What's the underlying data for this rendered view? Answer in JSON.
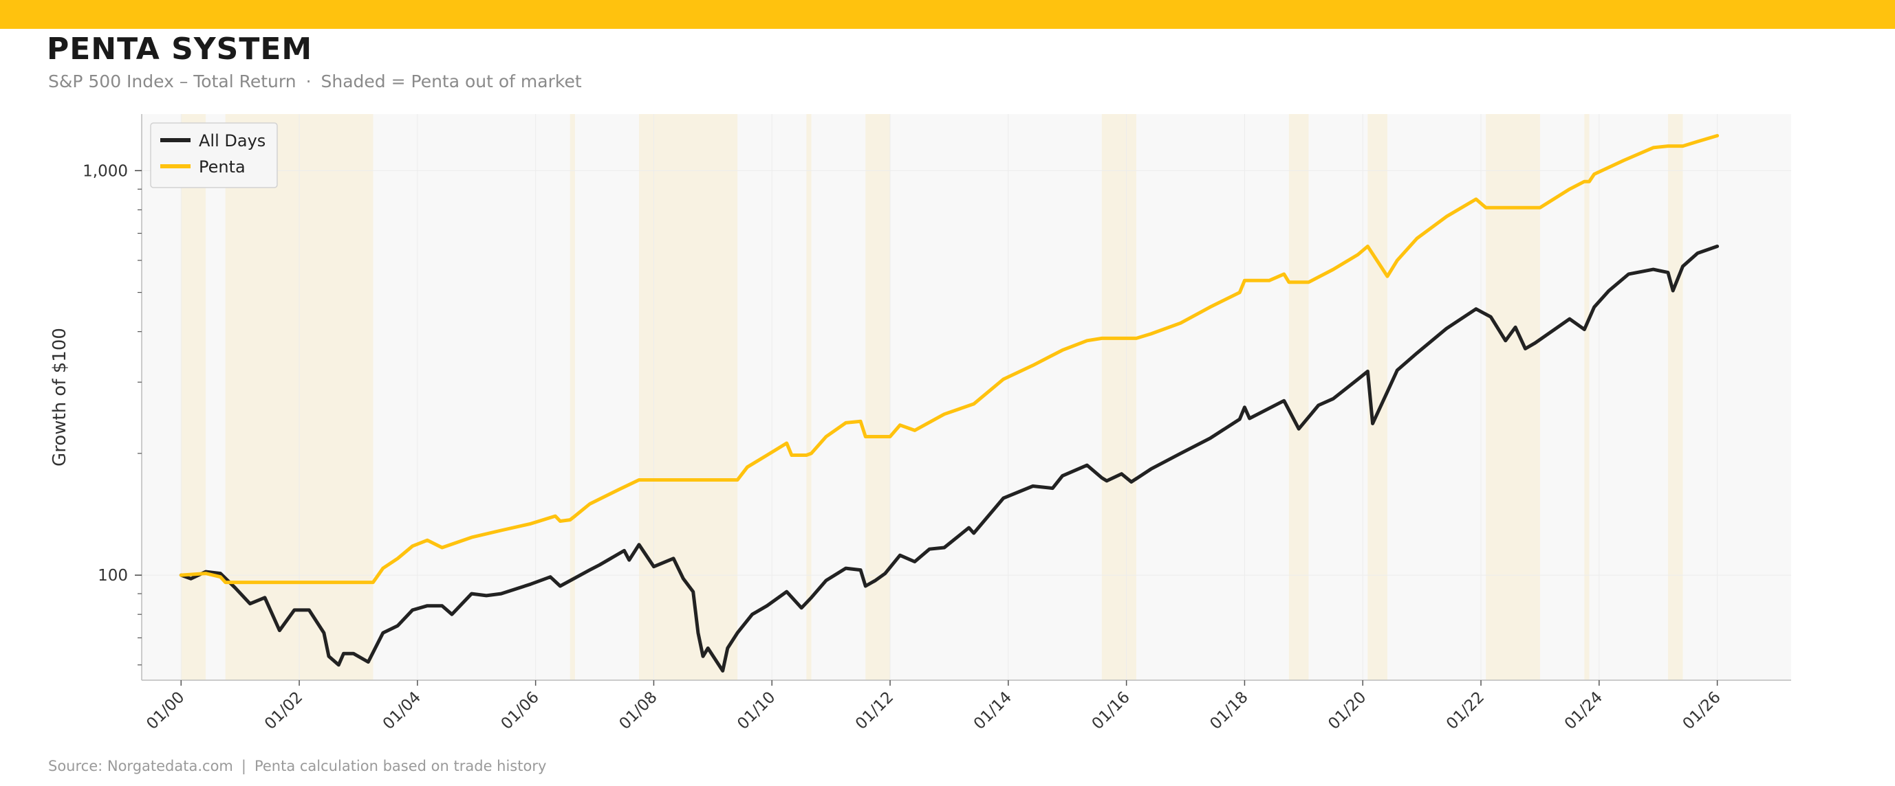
{
  "header": {
    "title": "PENTA SYSTEM",
    "subtitle_main": "S&P 500 Index – Total Return",
    "subtitle_sep": "·",
    "subtitle_note": "Shaded = Penta out of market"
  },
  "footer": {
    "source": "Source: Norgatedata.com",
    "sep": "|",
    "note": "Penta calculation based on trade history"
  },
  "colors": {
    "accent": "#FFC20E",
    "all_days": "#222222",
    "penta": "#FFC20E",
    "shade": "#F8F2E2",
    "plot_bg": "#F8F8F8",
    "grid": "#ECECEC"
  },
  "chart_data": {
    "type": "line",
    "ylabel": "Growth of $100",
    "xlabel": "",
    "y_scale": "log",
    "ylim": [
      55,
      1380
    ],
    "xlim": [
      "1999-05",
      "2027-04"
    ],
    "y_ticks": [
      {
        "value": 100,
        "label": "100"
      },
      {
        "value": 1000,
        "label": "1,000"
      }
    ],
    "x_ticks": [
      {
        "date": "2000-01",
        "label": "01/00"
      },
      {
        "date": "2002-01",
        "label": "01/02"
      },
      {
        "date": "2004-01",
        "label": "01/04"
      },
      {
        "date": "2006-01",
        "label": "01/06"
      },
      {
        "date": "2008-01",
        "label": "01/08"
      },
      {
        "date": "2010-01",
        "label": "01/10"
      },
      {
        "date": "2012-01",
        "label": "01/12"
      },
      {
        "date": "2014-01",
        "label": "01/14"
      },
      {
        "date": "2016-01",
        "label": "01/16"
      },
      {
        "date": "2018-01",
        "label": "01/18"
      },
      {
        "date": "2020-01",
        "label": "01/20"
      },
      {
        "date": "2022-01",
        "label": "01/22"
      },
      {
        "date": "2024-01",
        "label": "01/24"
      },
      {
        "date": "2026-01",
        "label": "01/26"
      }
    ],
    "grid": true,
    "legend_position": "top-left",
    "out_of_market_periods": [
      [
        "2000-01",
        "2000-06"
      ],
      [
        "2000-10",
        "2003-04"
      ],
      [
        "2006-08",
        "2006-09"
      ],
      [
        "2007-10",
        "2009-06"
      ],
      [
        "2010-08",
        "2010-09"
      ],
      [
        "2011-08",
        "2012-01"
      ],
      [
        "2015-08",
        "2016-03"
      ],
      [
        "2018-10",
        "2019-02"
      ],
      [
        "2020-02",
        "2020-06"
      ],
      [
        "2022-02",
        "2023-01"
      ],
      [
        "2023-10",
        "2023-11"
      ],
      [
        "2025-03",
        "2025-06"
      ]
    ],
    "series": [
      {
        "name": "All Days",
        "color": "#222222",
        "points": [
          [
            "2000-01",
            100
          ],
          [
            "2000-03",
            98
          ],
          [
            "2000-06",
            102
          ],
          [
            "2000-09",
            101
          ],
          [
            "2000-12",
            93
          ],
          [
            "2001-03",
            85
          ],
          [
            "2001-06",
            88
          ],
          [
            "2001-09",
            73
          ],
          [
            "2001-12",
            82
          ],
          [
            "2002-03",
            82
          ],
          [
            "2002-06",
            72
          ],
          [
            "2002-07",
            63
          ],
          [
            "2002-09",
            60
          ],
          [
            "2002-10",
            64
          ],
          [
            "2002-12",
            64
          ],
          [
            "2003-03",
            61
          ],
          [
            "2003-06",
            72
          ],
          [
            "2003-09",
            75
          ],
          [
            "2003-12",
            82
          ],
          [
            "2004-03",
            84
          ],
          [
            "2004-06",
            84
          ],
          [
            "2004-08",
            80
          ],
          [
            "2004-12",
            90
          ],
          [
            "2005-03",
            89
          ],
          [
            "2005-06",
            90
          ],
          [
            "2005-12",
            95
          ],
          [
            "2006-04",
            99
          ],
          [
            "2006-06",
            94
          ],
          [
            "2006-12",
            103
          ],
          [
            "2007-02",
            106
          ],
          [
            "2007-07",
            115
          ],
          [
            "2007-08",
            109
          ],
          [
            "2007-10",
            119
          ],
          [
            "2008-01",
            105
          ],
          [
            "2008-05",
            110
          ],
          [
            "2008-07",
            98
          ],
          [
            "2008-09",
            91
          ],
          [
            "2008-10",
            72
          ],
          [
            "2008-11",
            63
          ],
          [
            "2008-12",
            66
          ],
          [
            "2009-03",
            58
          ],
          [
            "2009-04",
            66
          ],
          [
            "2009-06",
            72
          ],
          [
            "2009-09",
            80
          ],
          [
            "2009-12",
            84
          ],
          [
            "2010-04",
            91
          ],
          [
            "2010-07",
            83
          ],
          [
            "2010-09",
            88
          ],
          [
            "2010-12",
            97
          ],
          [
            "2011-04",
            104
          ],
          [
            "2011-07",
            103
          ],
          [
            "2011-08",
            94
          ],
          [
            "2011-10",
            97
          ],
          [
            "2011-12",
            101
          ],
          [
            "2012-03",
            112
          ],
          [
            "2012-06",
            108
          ],
          [
            "2012-09",
            116
          ],
          [
            "2012-12",
            117
          ],
          [
            "2013-05",
            131
          ],
          [
            "2013-06",
            127
          ],
          [
            "2013-12",
            155
          ],
          [
            "2014-06",
            166
          ],
          [
            "2014-10",
            164
          ],
          [
            "2014-12",
            176
          ],
          [
            "2015-05",
            187
          ],
          [
            "2015-08",
            174
          ],
          [
            "2015-09",
            171
          ],
          [
            "2015-12",
            178
          ],
          [
            "2016-02",
            170
          ],
          [
            "2016-06",
            183
          ],
          [
            "2016-12",
            200
          ],
          [
            "2017-06",
            218
          ],
          [
            "2017-12",
            243
          ],
          [
            "2018-01",
            260
          ],
          [
            "2018-02",
            244
          ],
          [
            "2018-09",
            270
          ],
          [
            "2018-12",
            230
          ],
          [
            "2019-04",
            263
          ],
          [
            "2019-07",
            273
          ],
          [
            "2019-12",
            305
          ],
          [
            "2020-02",
            319
          ],
          [
            "2020-03",
            237
          ],
          [
            "2020-06",
            284
          ],
          [
            "2020-08",
            321
          ],
          [
            "2020-12",
            354
          ],
          [
            "2021-06",
            407
          ],
          [
            "2021-12",
            455
          ],
          [
            "2022-03",
            435
          ],
          [
            "2022-06",
            380
          ],
          [
            "2022-08",
            410
          ],
          [
            "2022-10",
            363
          ],
          [
            "2022-12",
            375
          ],
          [
            "2023-07",
            430
          ],
          [
            "2023-10",
            405
          ],
          [
            "2023-12",
            460
          ],
          [
            "2024-03",
            505
          ],
          [
            "2024-07",
            555
          ],
          [
            "2024-12",
            570
          ],
          [
            "2025-03",
            560
          ],
          [
            "2025-04",
            505
          ],
          [
            "2025-06",
            580
          ],
          [
            "2025-09",
            625
          ],
          [
            "2026-01",
            650
          ]
        ]
      },
      {
        "name": "Penta",
        "color": "#FFC20E",
        "points": [
          [
            "2000-01",
            100
          ],
          [
            "2000-06",
            101
          ],
          [
            "2000-09",
            99
          ],
          [
            "2000-10",
            96
          ],
          [
            "2003-04",
            96
          ],
          [
            "2003-06",
            104
          ],
          [
            "2003-09",
            110
          ],
          [
            "2003-12",
            118
          ],
          [
            "2004-03",
            122
          ],
          [
            "2004-06",
            117
          ],
          [
            "2004-12",
            124
          ],
          [
            "2005-06",
            129
          ],
          [
            "2005-12",
            134
          ],
          [
            "2006-05",
            140
          ],
          [
            "2006-06",
            136
          ],
          [
            "2006-08",
            137
          ],
          [
            "2006-09",
            140
          ],
          [
            "2006-12",
            150
          ],
          [
            "2007-06",
            163
          ],
          [
            "2007-10",
            172
          ],
          [
            "2009-06",
            172
          ],
          [
            "2009-08",
            185
          ],
          [
            "2009-12",
            198
          ],
          [
            "2010-04",
            212
          ],
          [
            "2010-05",
            198
          ],
          [
            "2010-08",
            198
          ],
          [
            "2010-09",
            200
          ],
          [
            "2010-12",
            220
          ],
          [
            "2011-04",
            238
          ],
          [
            "2011-07",
            240
          ],
          [
            "2011-08",
            220
          ],
          [
            "2012-01",
            220
          ],
          [
            "2012-03",
            235
          ],
          [
            "2012-06",
            228
          ],
          [
            "2012-12",
            250
          ],
          [
            "2013-06",
            265
          ],
          [
            "2013-12",
            305
          ],
          [
            "2014-06",
            330
          ],
          [
            "2014-12",
            360
          ],
          [
            "2015-05",
            380
          ],
          [
            "2015-08",
            385
          ],
          [
            "2016-03",
            385
          ],
          [
            "2016-06",
            395
          ],
          [
            "2016-12",
            420
          ],
          [
            "2017-06",
            460
          ],
          [
            "2017-12",
            500
          ],
          [
            "2018-01",
            535
          ],
          [
            "2018-06",
            535
          ],
          [
            "2018-09",
            555
          ],
          [
            "2018-10",
            530
          ],
          [
            "2019-02",
            530
          ],
          [
            "2019-07",
            570
          ],
          [
            "2019-12",
            620
          ],
          [
            "2020-02",
            650
          ],
          [
            "2020-06",
            548
          ],
          [
            "2020-08",
            600
          ],
          [
            "2020-12",
            680
          ],
          [
            "2021-06",
            770
          ],
          [
            "2021-12",
            850
          ],
          [
            "2022-02",
            810
          ],
          [
            "2023-01",
            810
          ],
          [
            "2023-07",
            900
          ],
          [
            "2023-10",
            940
          ],
          [
            "2023-11",
            940
          ],
          [
            "2023-12",
            980
          ],
          [
            "2024-06",
            1060
          ],
          [
            "2024-12",
            1140
          ],
          [
            "2025-03",
            1150
          ],
          [
            "2025-06",
            1150
          ],
          [
            "2025-09",
            1180
          ],
          [
            "2026-01",
            1220
          ]
        ]
      }
    ]
  }
}
